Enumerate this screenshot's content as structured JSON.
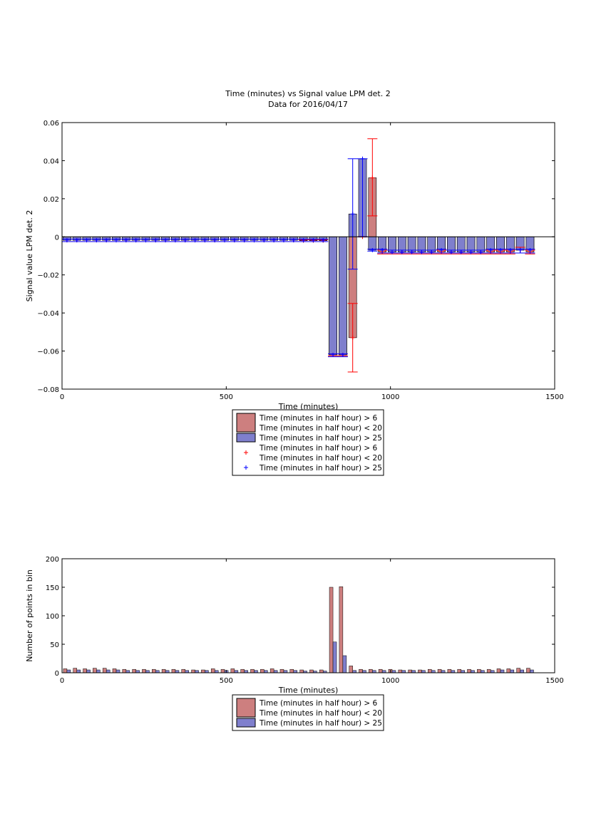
{
  "figure": {
    "title_line1": "Time (minutes) vs Signal value LPM det. 2",
    "title_line2": "Data for 2016/04/17"
  },
  "chart_data": [
    {
      "type": "bar",
      "xlabel": "Time (minutes)",
      "ylabel": "Signal value LPM det. 2",
      "xlim": [
        0,
        1500
      ],
      "ylim": [
        -0.08,
        0.06
      ],
      "xticks": [
        0,
        500,
        1000,
        1500
      ],
      "xtick_labels": [
        "0",
        "500",
        "1000",
        "1500"
      ],
      "yticks": [
        -0.08,
        -0.06,
        -0.04,
        -0.02,
        0,
        0.02,
        0.04,
        0.06
      ],
      "ytick_labels": [
        "−0.08",
        "−0.06",
        "−0.04",
        "−0.02",
        "0",
        "0.02",
        "0.04",
        "0.06"
      ],
      "legend_position": "below",
      "legend": [
        {
          "kind": "bar",
          "lines": [
            "Time (minutes in half hour) > 6",
            "Time (minutes in half hour) < 20"
          ],
          "color": "#cd7f7f"
        },
        {
          "kind": "bar",
          "lines": [
            "Time (minutes in half hour) > 25"
          ],
          "color": "#7f7fcd"
        },
        {
          "kind": "marker",
          "lines": [
            "Time (minutes in half hour) > 6",
            "Time (minutes in half hour) < 20"
          ],
          "color": "#ff0000"
        },
        {
          "kind": "marker",
          "lines": [
            "Time (minutes in half hour) > 25"
          ],
          "color": "#0000ff"
        }
      ],
      "bin_width": 30,
      "series": [
        {
          "name": "Time (minutes in half hour) > 6 / < 20",
          "fill": "#cd7f7f",
          "marker_color": "#ff0000",
          "x": [
            15,
            45,
            75,
            105,
            135,
            165,
            195,
            225,
            255,
            285,
            315,
            345,
            375,
            405,
            435,
            465,
            495,
            525,
            555,
            585,
            615,
            645,
            675,
            705,
            735,
            765,
            795,
            825,
            855,
            885,
            915,
            945,
            975,
            1005,
            1035,
            1065,
            1095,
            1125,
            1155,
            1185,
            1215,
            1245,
            1275,
            1305,
            1335,
            1365,
            1395,
            1425
          ],
          "values": [
            -0.0018,
            -0.0018,
            -0.0018,
            -0.0018,
            -0.0018,
            -0.0018,
            -0.0018,
            -0.0018,
            -0.0018,
            -0.0018,
            -0.0018,
            -0.0018,
            -0.0018,
            -0.0018,
            -0.0018,
            -0.0018,
            -0.0018,
            -0.0018,
            -0.0018,
            -0.0018,
            -0.0018,
            -0.0018,
            -0.0018,
            -0.0018,
            -0.002,
            -0.002,
            -0.002,
            -0.062,
            -0.062,
            -0.053,
            0.0,
            0.031,
            -0.008,
            -0.008,
            -0.008,
            -0.008,
            -0.008,
            -0.008,
            -0.008,
            -0.008,
            -0.008,
            -0.008,
            -0.008,
            -0.008,
            -0.008,
            -0.008,
            -0.007,
            -0.008
          ],
          "err_low": [
            -0.0025,
            -0.0025,
            -0.0025,
            -0.0025,
            -0.0025,
            -0.0025,
            -0.0025,
            -0.0025,
            -0.0025,
            -0.0025,
            -0.0025,
            -0.0025,
            -0.0025,
            -0.0025,
            -0.0025,
            -0.0025,
            -0.0025,
            -0.0025,
            -0.0025,
            -0.0025,
            -0.0025,
            -0.0025,
            -0.0025,
            -0.0025,
            -0.0025,
            -0.0025,
            -0.0025,
            -0.0625,
            -0.0625,
            -0.071,
            0.0,
            0.011,
            -0.009,
            -0.009,
            -0.009,
            -0.009,
            -0.009,
            -0.009,
            -0.009,
            -0.009,
            -0.009,
            -0.009,
            -0.009,
            -0.009,
            -0.009,
            -0.009,
            -0.0085,
            -0.009
          ],
          "err_high": [
            -0.0012,
            -0.0012,
            -0.0012,
            -0.0012,
            -0.0012,
            -0.0012,
            -0.0012,
            -0.0012,
            -0.0012,
            -0.0012,
            -0.0012,
            -0.0012,
            -0.0012,
            -0.0012,
            -0.0012,
            -0.0012,
            -0.0012,
            -0.0012,
            -0.0012,
            -0.0012,
            -0.0012,
            -0.0012,
            -0.0012,
            -0.0012,
            -0.0015,
            -0.0015,
            -0.0015,
            -0.0615,
            -0.0615,
            -0.035,
            0.0,
            0.0515,
            -0.007,
            -0.007,
            -0.007,
            -0.007,
            -0.007,
            -0.007,
            -0.007,
            -0.007,
            -0.007,
            -0.007,
            -0.007,
            -0.007,
            -0.007,
            -0.007,
            -0.0055,
            -0.007
          ]
        },
        {
          "name": "Time (minutes in half hour) > 25",
          "fill": "#7f7fcd",
          "marker_color": "#0000ff",
          "x": [
            15,
            45,
            75,
            105,
            135,
            165,
            195,
            225,
            255,
            285,
            315,
            345,
            375,
            405,
            435,
            465,
            495,
            525,
            555,
            585,
            615,
            645,
            675,
            705,
            735,
            765,
            795,
            825,
            855,
            885,
            915,
            945,
            975,
            1005,
            1035,
            1065,
            1095,
            1125,
            1155,
            1185,
            1215,
            1245,
            1275,
            1305,
            1335,
            1365,
            1395,
            1425
          ],
          "values": [
            -0.0018,
            -0.0018,
            -0.0018,
            -0.0018,
            -0.0018,
            -0.0018,
            -0.0018,
            -0.0018,
            -0.0018,
            -0.0018,
            -0.0018,
            -0.0018,
            -0.0018,
            -0.0018,
            -0.0018,
            -0.0018,
            -0.0018,
            -0.0018,
            -0.0018,
            -0.0018,
            -0.0018,
            -0.0018,
            -0.0018,
            -0.0018,
            -0.0018,
            -0.0018,
            -0.0018,
            -0.062,
            -0.062,
            0.012,
            0.041,
            -0.007,
            -0.007,
            -0.008,
            -0.008,
            -0.008,
            -0.008,
            -0.008,
            -0.007,
            -0.008,
            -0.008,
            -0.008,
            -0.008,
            -0.007,
            -0.007,
            -0.007,
            -0.007,
            -0.007
          ],
          "err_low": [
            -0.0025,
            -0.0025,
            -0.0025,
            -0.0025,
            -0.0025,
            -0.0025,
            -0.0025,
            -0.0025,
            -0.0025,
            -0.0025,
            -0.0025,
            -0.0025,
            -0.0025,
            -0.0025,
            -0.0025,
            -0.0025,
            -0.0025,
            -0.0025,
            -0.0025,
            -0.0025,
            -0.0025,
            -0.0025,
            -0.0025,
            -0.0025,
            -0.0025,
            -0.0025,
            -0.0025,
            -0.063,
            -0.063,
            -0.017,
            0.0,
            -0.0075,
            -0.0085,
            -0.0085,
            -0.0085,
            -0.0085,
            -0.0085,
            -0.0085,
            -0.0085,
            -0.0085,
            -0.0085,
            -0.0085,
            -0.0085,
            -0.0085,
            -0.0085,
            -0.0085,
            -0.0085,
            -0.0085
          ],
          "err_high": [
            -0.0012,
            -0.0012,
            -0.0012,
            -0.0012,
            -0.0012,
            -0.0012,
            -0.0012,
            -0.0012,
            -0.0012,
            -0.0012,
            -0.0012,
            -0.0012,
            -0.0012,
            -0.0012,
            -0.0012,
            -0.0012,
            -0.0012,
            -0.0012,
            -0.0012,
            -0.0012,
            -0.0012,
            -0.0012,
            -0.0012,
            -0.0012,
            -0.0012,
            -0.0012,
            -0.0012,
            -0.0615,
            -0.0615,
            0.041,
            0.041,
            -0.0065,
            -0.0065,
            -0.007,
            -0.007,
            -0.007,
            -0.007,
            -0.007,
            -0.0065,
            -0.007,
            -0.007,
            -0.007,
            -0.007,
            -0.0065,
            -0.0065,
            -0.0065,
            -0.0065,
            -0.0065
          ]
        }
      ]
    },
    {
      "type": "bar",
      "xlabel": "Time (minutes)",
      "ylabel": "Number of points in bin",
      "xlim": [
        0,
        1500
      ],
      "ylim": [
        0,
        200
      ],
      "xticks": [
        0,
        500,
        1000,
        1500
      ],
      "xtick_labels": [
        "0",
        "500",
        "1000",
        "1500"
      ],
      "yticks": [
        0,
        50,
        100,
        150,
        200
      ],
      "ytick_labels": [
        "0",
        "50",
        "100",
        "150",
        "200"
      ],
      "legend_position": "below",
      "legend": [
        {
          "kind": "bar",
          "lines": [
            "Time (minutes in half hour) > 6",
            "Time (minutes in half hour) < 20"
          ],
          "color": "#cd7f7f"
        },
        {
          "kind": "bar",
          "lines": [
            "Time (minutes in half hour) > 25"
          ],
          "color": "#7f7fcd"
        }
      ],
      "categories": [
        15,
        45,
        75,
        105,
        135,
        165,
        195,
        225,
        255,
        285,
        315,
        345,
        375,
        405,
        435,
        465,
        495,
        525,
        555,
        585,
        615,
        645,
        675,
        705,
        735,
        765,
        795,
        825,
        855,
        885,
        915,
        945,
        975,
        1005,
        1035,
        1065,
        1095,
        1125,
        1155,
        1185,
        1215,
        1245,
        1275,
        1305,
        1335,
        1365,
        1395,
        1425
      ],
      "series": [
        {
          "name": "Time (minutes in half hour) > 6 / < 20",
          "fill": "#cd7f7f",
          "values": [
            7,
            8,
            7,
            8,
            8,
            7,
            6,
            6,
            6,
            6,
            6,
            6,
            6,
            5,
            5,
            7,
            6,
            7,
            6,
            6,
            6,
            7,
            6,
            6,
            5,
            5,
            5,
            150,
            151,
            12,
            6,
            6,
            6,
            6,
            5,
            5,
            5,
            6,
            6,
            6,
            6,
            6,
            6,
            6,
            7,
            7,
            8,
            8
          ]
        },
        {
          "name": "Time (minutes in half hour) > 25",
          "fill": "#7f7fcd",
          "values": [
            5,
            5,
            5,
            5,
            5,
            5,
            4,
            4,
            4,
            4,
            4,
            4,
            4,
            4,
            4,
            4,
            4,
            4,
            4,
            4,
            4,
            4,
            4,
            4,
            3,
            3,
            3,
            54,
            30,
            4,
            4,
            4,
            4,
            4,
            4,
            4,
            4,
            4,
            4,
            4,
            4,
            4,
            4,
            4,
            5,
            5,
            5,
            5
          ]
        }
      ]
    }
  ]
}
